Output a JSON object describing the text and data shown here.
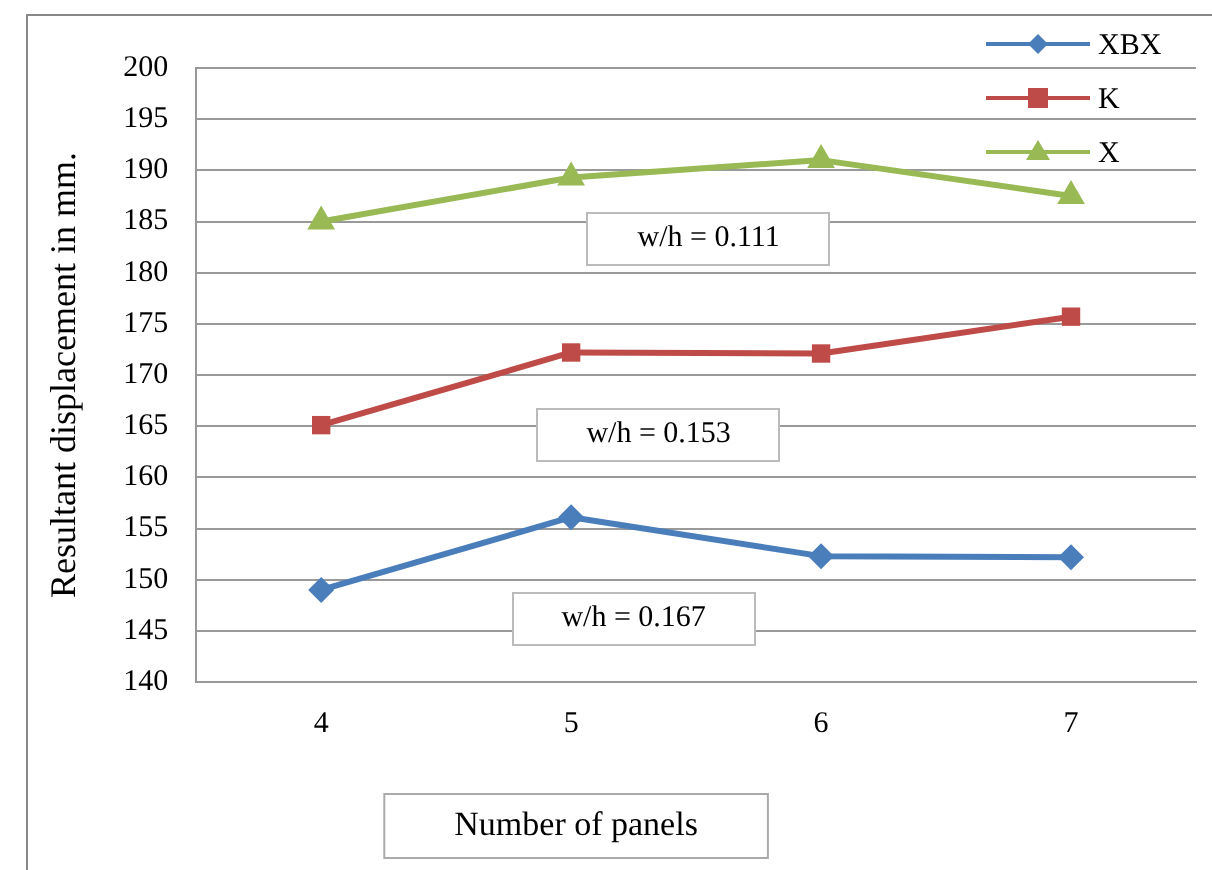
{
  "chart_data": {
    "type": "line",
    "xlabel": "Number of panels",
    "ylabel": "Resultant displacement in mm.",
    "categories": [
      "4",
      "5",
      "6",
      "7"
    ],
    "series": [
      {
        "name": "XBX",
        "color": "#4a7ebb",
        "marker": "diamond",
        "values": [
          149.0,
          156.1,
          152.3,
          152.2
        ]
      },
      {
        "name": "K",
        "color": "#be4b48",
        "marker": "square",
        "values": [
          165.1,
          172.2,
          172.1,
          175.7
        ]
      },
      {
        "name": "X",
        "color": "#98b954",
        "marker": "triangle",
        "values": [
          185.0,
          189.3,
          191.0,
          187.5
        ]
      }
    ],
    "ylim": [
      140,
      200
    ],
    "yticks": [
      140,
      145,
      150,
      155,
      160,
      165,
      170,
      175,
      180,
      185,
      190,
      195,
      200
    ],
    "grid": "y",
    "legend": "top right",
    "annotations": [
      "w/h = 0.111",
      "w/h = 0.153",
      "w/h = 0.167"
    ]
  }
}
